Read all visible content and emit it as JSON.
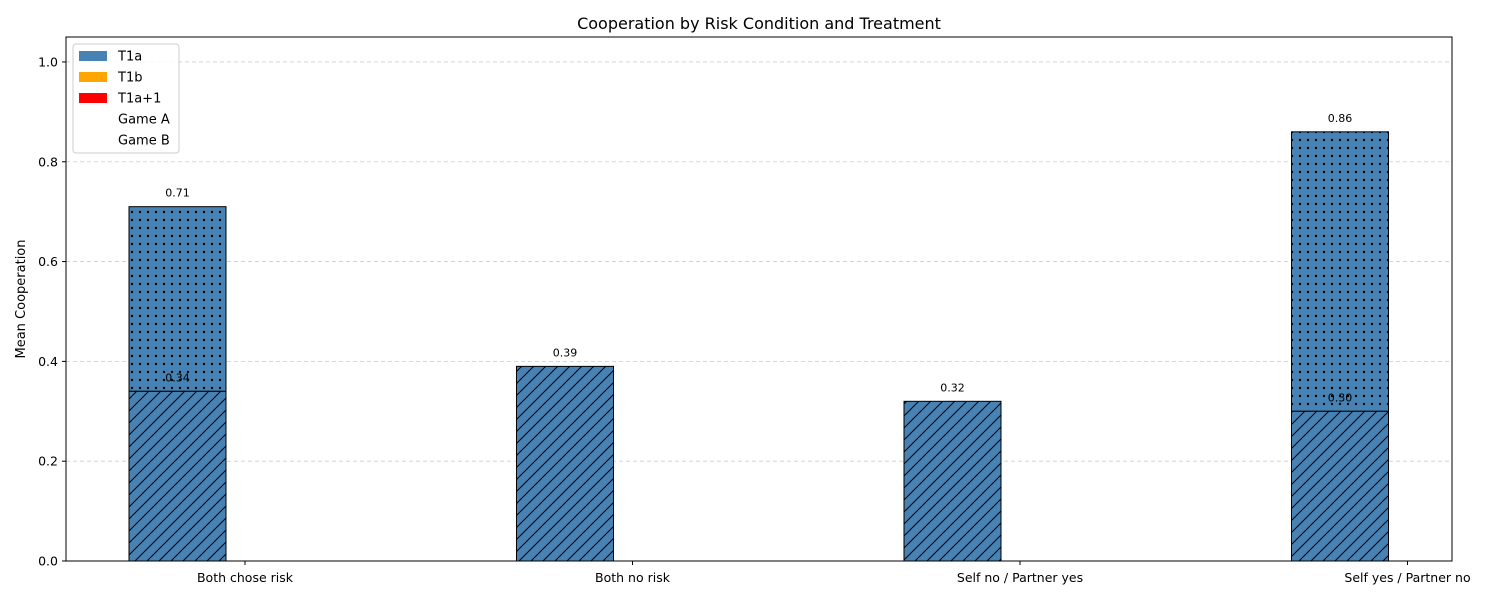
{
  "chart_data": {
    "type": "bar",
    "title": "Cooperation by Risk Condition and Treatment",
    "xlabel": "",
    "ylabel": "Mean Cooperation",
    "ylim": [
      0,
      1.05
    ],
    "yticks": [
      "0.0",
      "0.2",
      "0.4",
      "0.6",
      "0.8",
      "1.0"
    ],
    "grid": "y-dashed",
    "categories": [
      "Both chose risk",
      "Both no risk",
      "Self no / Partner yes",
      "Self yes / Partner no"
    ],
    "series": [
      {
        "name": "Game A",
        "treatment": "T1a",
        "hatch": "diagonal",
        "values": [
          0.34,
          0.39,
          0.32,
          0.3
        ],
        "labels": [
          "0.34",
          "0.39",
          "0.32",
          "0.30"
        ]
      },
      {
        "name": "Game B",
        "treatment": "T1a",
        "hatch": "dots",
        "values": [
          0.71,
          null,
          null,
          0.86
        ],
        "labels": [
          "0.71",
          "",
          "",
          "0.86"
        ]
      }
    ],
    "legend": {
      "position": "top-left",
      "entries": [
        {
          "label": "T1a",
          "color": "#4682B4"
        },
        {
          "label": "T1b",
          "color": "#FFA500"
        },
        {
          "label": "T1a+1",
          "color": "#FF0000"
        },
        {
          "label": "Game A",
          "color": null
        },
        {
          "label": "Game B",
          "color": null
        }
      ]
    },
    "colors": {
      "T1a": "#4682B4",
      "T1b": "#FFA500",
      "T1a+1": "#FF0000"
    }
  }
}
